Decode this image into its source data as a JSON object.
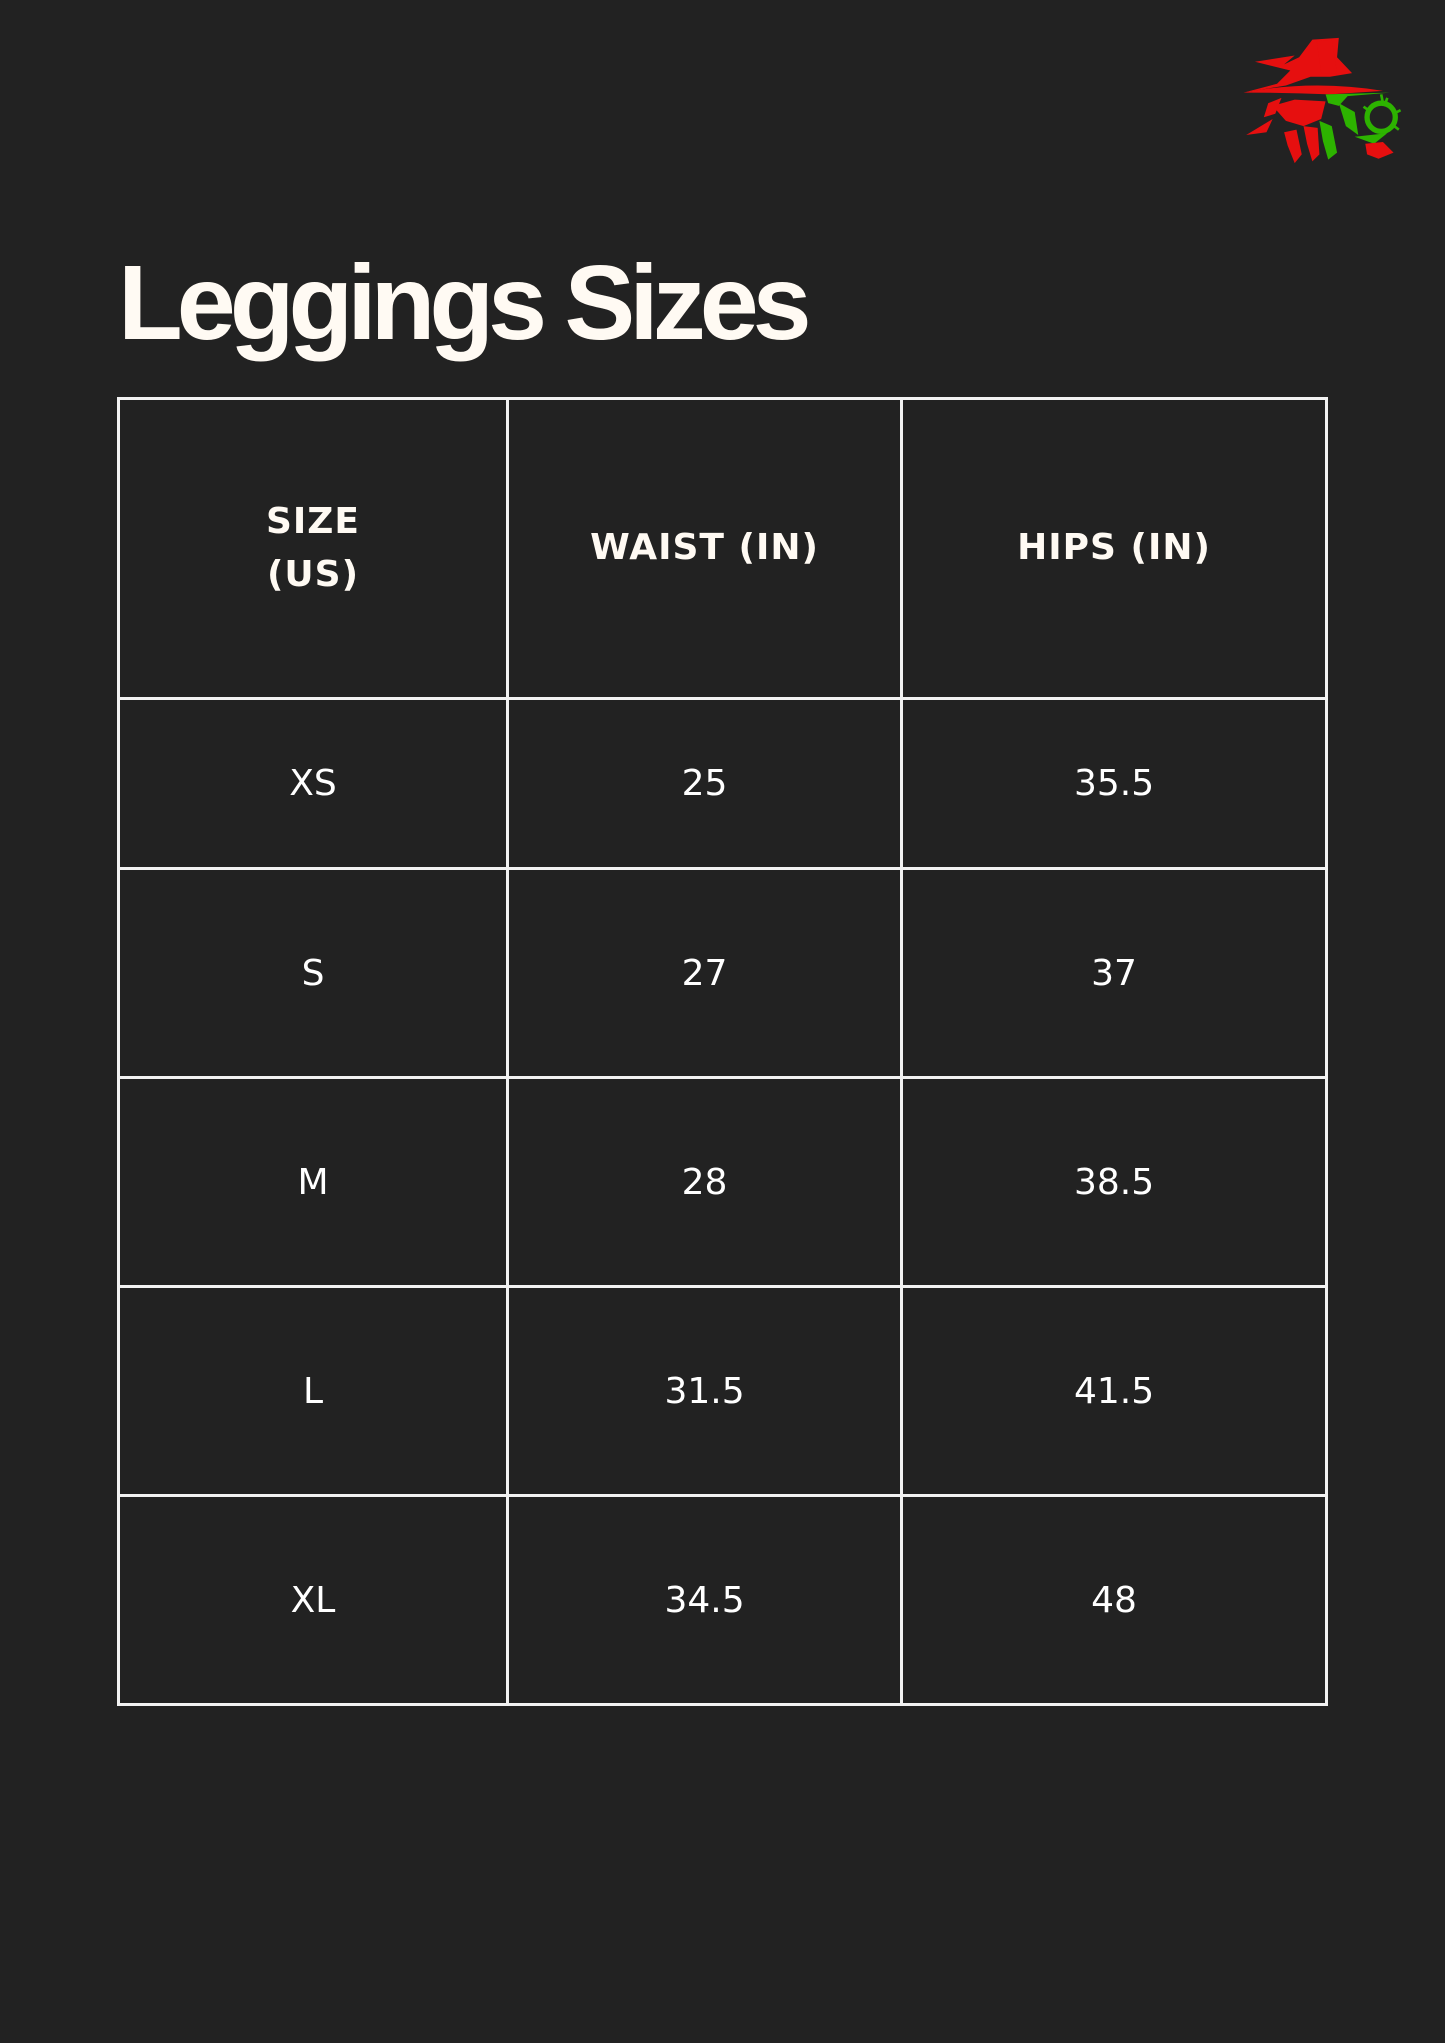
{
  "logo": {
    "name": "wizard-logo",
    "colors": {
      "red": "#e60f0f",
      "green": "#2db300"
    }
  },
  "title": "Leggings Sizes",
  "table": {
    "headers": [
      "SIZE\n(US)",
      "WAIST (IN)",
      "HIPS (IN)"
    ],
    "header_lines": [
      "SIZE",
      "(US)"
    ],
    "rows": [
      [
        "XS",
        "25",
        "35.5"
      ],
      [
        "S",
        "27",
        "37"
      ],
      [
        "M",
        "28",
        "38.5"
      ],
      [
        "L",
        "31.5",
        "41.5"
      ],
      [
        "XL",
        "34.5",
        "48"
      ]
    ]
  },
  "colors": {
    "background": "#222222",
    "text": "#fffaf3",
    "border": "#f2f2f2"
  }
}
